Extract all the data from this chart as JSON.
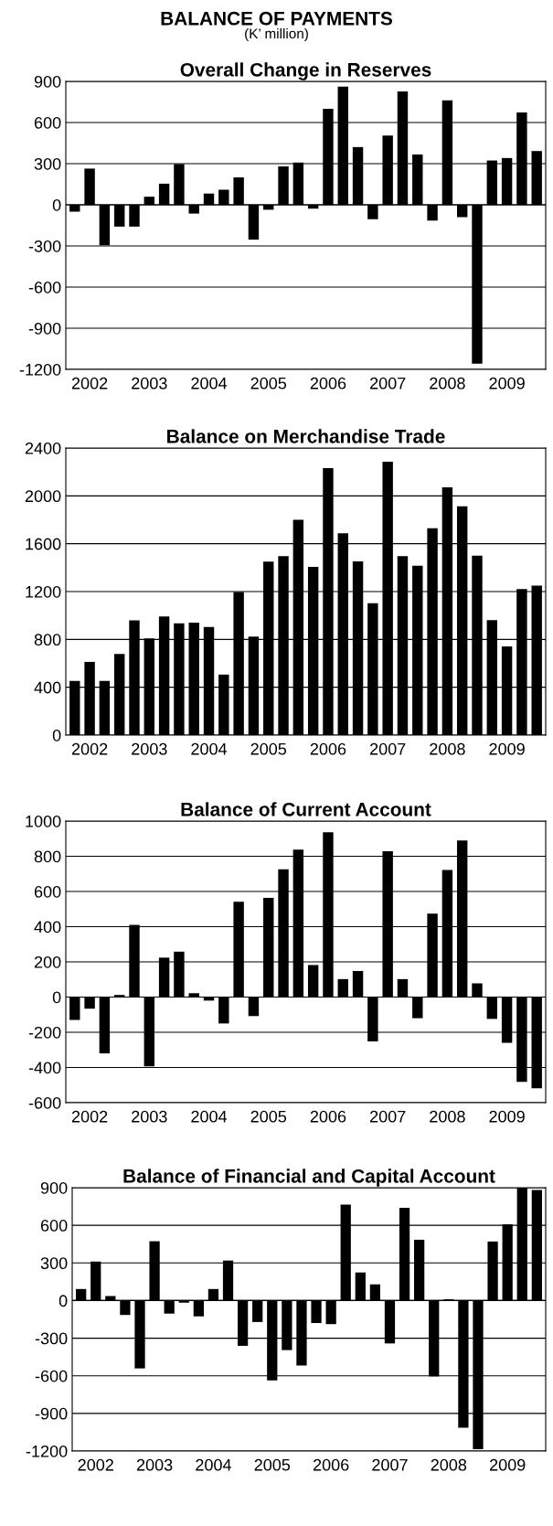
{
  "chart_data": [
    {
      "type": "bar",
      "title": "Overall Change in Reserves",
      "annotations": [
        "BALANCE OF PAYMENTS",
        "(K’ million)"
      ],
      "categories": [
        null,
        "2002",
        null,
        null,
        null,
        "2003",
        null,
        null,
        null,
        "2004",
        null,
        null,
        null,
        "2005",
        null,
        null,
        null,
        "2006",
        null,
        null,
        null,
        "2007",
        null,
        null,
        null,
        "2008",
        null,
        null,
        null,
        "2009",
        null,
        null
      ],
      "values": [
        -50,
        264,
        -295,
        -159,
        -159,
        59,
        154,
        297,
        -64,
        82,
        110,
        200,
        -254,
        -36,
        280,
        308,
        -28,
        700,
        862,
        421,
        -105,
        505,
        826,
        367,
        -115,
        762,
        -90,
        -1159,
        323,
        341,
        674,
        392
      ],
      "color": "#000000",
      "ylim": [
        -1200,
        900
      ],
      "yticks": [
        -1200,
        -900,
        -600,
        -300,
        0,
        300,
        600,
        900
      ],
      "grid": "y"
    },
    {
      "type": "bar",
      "title": "Balance on Merchandise Trade",
      "categories": [
        null,
        "2002",
        null,
        null,
        null,
        "2003",
        null,
        null,
        null,
        "2004",
        null,
        null,
        null,
        "2005",
        null,
        null,
        null,
        "2006",
        null,
        null,
        null,
        "2007",
        null,
        null,
        null,
        "2008",
        null,
        null,
        null,
        "2009",
        null,
        null
      ],
      "values": [
        453,
        612,
        453,
        679,
        959,
        809,
        991,
        935,
        941,
        903,
        506,
        1197,
        824,
        1450,
        1497,
        1800,
        1406,
        2232,
        1688,
        1453,
        1103,
        2285,
        1497,
        1415,
        1729,
        2071,
        1912,
        1500,
        962,
        741,
        1221,
        1250
      ],
      "color": "#000000",
      "ylim": [
        0,
        2400
      ],
      "yticks": [
        0,
        400,
        800,
        1200,
        1600,
        2000,
        2400
      ],
      "grid": "y"
    },
    {
      "type": "bar",
      "title": "Balance of Current Account",
      "categories": [
        null,
        "2002",
        null,
        null,
        null,
        "2003",
        null,
        null,
        null,
        "2004",
        null,
        null,
        null,
        "2005",
        null,
        null,
        null,
        "2006",
        null,
        null,
        null,
        "2007",
        null,
        null,
        null,
        "2008",
        null,
        null,
        null,
        "2009",
        null,
        null
      ],
      "values": [
        -130,
        -66,
        -320,
        12,
        410,
        -394,
        224,
        258,
        22,
        -20,
        -150,
        542,
        -108,
        564,
        726,
        838,
        182,
        936,
        102,
        148,
        -252,
        828,
        102,
        -120,
        474,
        722,
        890,
        78,
        -124,
        -260,
        -482,
        -518
      ],
      "color": "#000000",
      "ylim": [
        -600,
        1000
      ],
      "yticks": [
        -600,
        -400,
        -200,
        0,
        200,
        400,
        600,
        800,
        1000
      ],
      "grid": "y"
    },
    {
      "type": "bar",
      "title": "Balance of Financial and Capital Account",
      "categories": [
        null,
        "2002",
        null,
        null,
        null,
        "2003",
        null,
        null,
        null,
        "2004",
        null,
        null,
        null,
        "2005",
        null,
        null,
        null,
        "2006",
        null,
        null,
        null,
        "2007",
        null,
        null,
        null,
        "2008",
        null,
        null,
        null,
        "2009",
        null,
        null
      ],
      "values": [
        92,
        311,
        36,
        -115,
        -541,
        473,
        -104,
        -17,
        -126,
        92,
        319,
        -361,
        -171,
        -636,
        -395,
        -518,
        -179,
        -188,
        765,
        224,
        129,
        -342,
        739,
        485,
        -605,
        10,
        -1014,
        -1185,
        471,
        608,
        900,
        882
      ],
      "color": "#000000",
      "ylim": [
        -1200,
        900
      ],
      "yticks": [
        -1200,
        -900,
        -600,
        -300,
        0,
        300,
        600,
        900
      ],
      "grid": "y"
    }
  ]
}
